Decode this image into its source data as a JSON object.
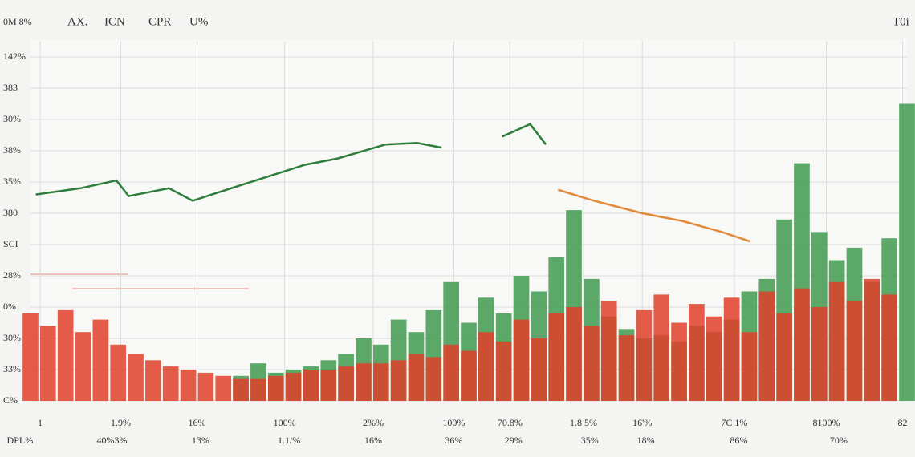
{
  "chart_data": {
    "type": "bar",
    "header": [
      "0M 8%",
      "AX.",
      "ICN",
      "CPR",
      "U%",
      "T0i"
    ],
    "xlim": [
      0,
      100
    ],
    "ylim": [
      0,
      11.5
    ],
    "yticks": [
      {
        "value": 0,
        "label": "C%"
      },
      {
        "value": 1,
        "label": "33%"
      },
      {
        "value": 2,
        "label": "30%"
      },
      {
        "value": 3,
        "label": "0%"
      },
      {
        "value": 4,
        "label": "28%"
      },
      {
        "value": 5,
        "label": "SCI"
      },
      {
        "value": 6,
        "label": "380"
      },
      {
        "value": 7,
        "label": "35%"
      },
      {
        "value": 8,
        "label": "38%"
      },
      {
        "value": 9,
        "label": "30%"
      },
      {
        "value": 10,
        "label": "383"
      },
      {
        "value": 11,
        "label": "142%"
      }
    ],
    "xticks": [
      {
        "value": 1.1,
        "label": "1"
      },
      {
        "value": 10.3,
        "label": "1.9%"
      },
      {
        "value": 19,
        "label": "16%"
      },
      {
        "value": 29,
        "label": "100%"
      },
      {
        "value": 39.1,
        "label": "2%%"
      },
      {
        "value": 48.3,
        "label": "100%"
      },
      {
        "value": 54.7,
        "label": "70.8%"
      },
      {
        "value": 63.1,
        "label": "1.8 5%"
      },
      {
        "value": 69.8,
        "label": "16'%"
      },
      {
        "value": 80.3,
        "label": "7C 1%"
      },
      {
        "value": 90.8,
        "label": "8100%"
      },
      {
        "value": 99.5,
        "label": "82"
      }
    ],
    "x_sublabels": [
      {
        "value": -1.2,
        "label": "DPL%"
      },
      {
        "value": 9.3,
        "label": "40%3%"
      },
      {
        "value": 19.4,
        "label": "13%"
      },
      {
        "value": 29.5,
        "label": "1.1/%"
      },
      {
        "value": 39.1,
        "label": "16%"
      },
      {
        "value": 48.3,
        "label": "36%"
      },
      {
        "value": 55.1,
        "label": "29%"
      },
      {
        "value": 63.8,
        "label": "35%"
      },
      {
        "value": 70.2,
        "label": "18%"
      },
      {
        "value": 80.8,
        "label": "86%"
      },
      {
        "value": 92.2,
        "label": "70%"
      }
    ],
    "grid": true,
    "bars": [
      {
        "color": "#3f9a4f",
        "x": [
          24,
          26,
          28,
          30,
          32,
          34,
          36,
          38,
          40,
          42,
          44,
          46,
          48,
          50,
          52,
          54,
          56,
          58,
          60,
          62,
          64,
          66,
          68,
          70,
          72,
          74,
          76,
          78,
          80,
          82,
          84,
          86,
          88,
          90,
          92,
          94,
          96,
          98,
          100
        ],
        "values": [
          0.8,
          1.2,
          0.9,
          1.0,
          1.1,
          1.3,
          1.5,
          2.0,
          1.8,
          2.6,
          2.2,
          2.9,
          3.8,
          2.5,
          3.3,
          2.8,
          4.0,
          3.5,
          4.6,
          6.1,
          3.9,
          2.7,
          2.3,
          2.0,
          2.1,
          1.9,
          2.4,
          2.2,
          2.6,
          3.5,
          3.9,
          5.8,
          7.6,
          5.4,
          4.5,
          4.9,
          3.8,
          5.2,
          9.5
        ]
      },
      {
        "color": "#e2402a",
        "x": [
          0,
          2,
          4,
          6,
          8,
          10,
          12,
          14,
          16,
          18,
          20,
          22,
          24,
          26,
          28,
          30,
          32,
          34,
          36,
          38,
          40,
          42,
          44,
          46,
          48,
          50,
          52,
          54,
          56,
          58,
          60,
          62,
          64,
          66,
          68,
          70,
          72,
          74,
          76,
          78,
          80,
          82,
          84,
          86,
          88,
          90,
          92,
          94,
          96,
          98
        ],
        "values": [
          2.8,
          2.4,
          2.9,
          2.2,
          2.6,
          1.8,
          1.5,
          1.3,
          1.1,
          1.0,
          0.9,
          0.8,
          0.7,
          0.7,
          0.8,
          0.9,
          1.0,
          1.0,
          1.1,
          1.2,
          1.2,
          1.3,
          1.5,
          1.4,
          1.8,
          1.6,
          2.2,
          1.9,
          2.6,
          2.0,
          2.8,
          3.0,
          2.4,
          3.2,
          2.1,
          2.9,
          3.4,
          2.5,
          3.1,
          2.7,
          3.3,
          2.2,
          3.5,
          2.8,
          3.6,
          3.0,
          3.8,
          3.2,
          3.9,
          3.4
        ]
      }
    ],
    "lines": [
      {
        "color": "#2f7d3a",
        "x": [
          0.6,
          5.7,
          9.8,
          11.2,
          15.8,
          18.5,
          24,
          31.3,
          35,
          40.5,
          44.1,
          46.9,
          null,
          53.8,
          57,
          58.8
        ],
        "values": [
          6.6,
          6.8,
          7.05,
          6.55,
          6.8,
          6.4,
          6.9,
          7.55,
          7.75,
          8.2,
          8.25,
          8.1,
          null,
          8.45,
          8.85,
          8.2
        ]
      },
      {
        "color": "#e08a3a",
        "x": [
          60.2,
          64.3,
          69.8,
          74.4,
          78.9,
          82.1
        ],
        "values": [
          6.75,
          6.4,
          6.0,
          5.75,
          5.4,
          5.1
        ]
      }
    ]
  }
}
